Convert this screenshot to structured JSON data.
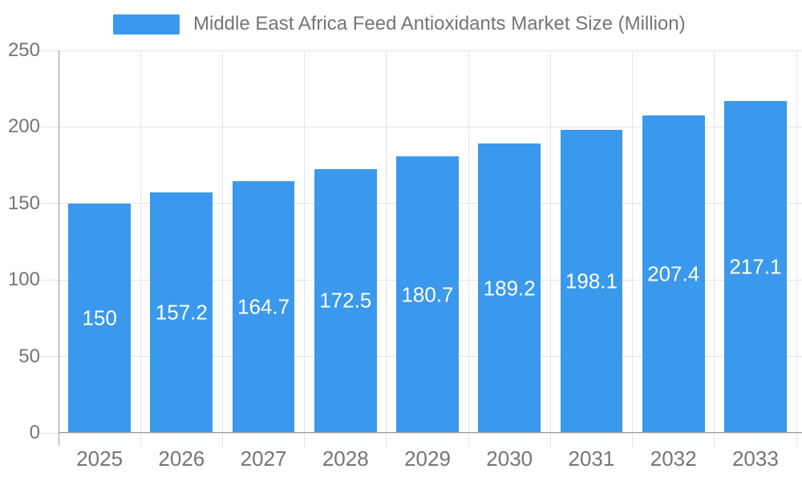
{
  "legend": {
    "label": "Middle East Africa Feed Antioxidants Market Size (Million)"
  },
  "chart_data": {
    "type": "bar",
    "title": "Middle East Africa Feed Antioxidants Market Size (Million)",
    "categories": [
      "2025",
      "2026",
      "2027",
      "2028",
      "2029",
      "2030",
      "2031",
      "2032",
      "2033"
    ],
    "values": [
      150,
      157.2,
      164.7,
      172.5,
      180.7,
      189.2,
      198.1,
      207.4,
      217.1
    ],
    "value_labels": [
      "150",
      "157.2",
      "164.7",
      "172.5",
      "180.7",
      "189.2",
      "198.1",
      "207.4",
      "217.1"
    ],
    "xlabel": "",
    "ylabel": "",
    "ylim": [
      0,
      250
    ],
    "yticks": [
      0,
      50,
      100,
      150,
      200,
      250
    ],
    "grid": true,
    "legend_position": "top",
    "colors": {
      "bar": "#3a99ec",
      "grid": "#e4e4e4",
      "axis": "#9b9b9b",
      "tick_text": "#757575",
      "value_text": "#ffffff",
      "background": "#ffffff"
    }
  }
}
